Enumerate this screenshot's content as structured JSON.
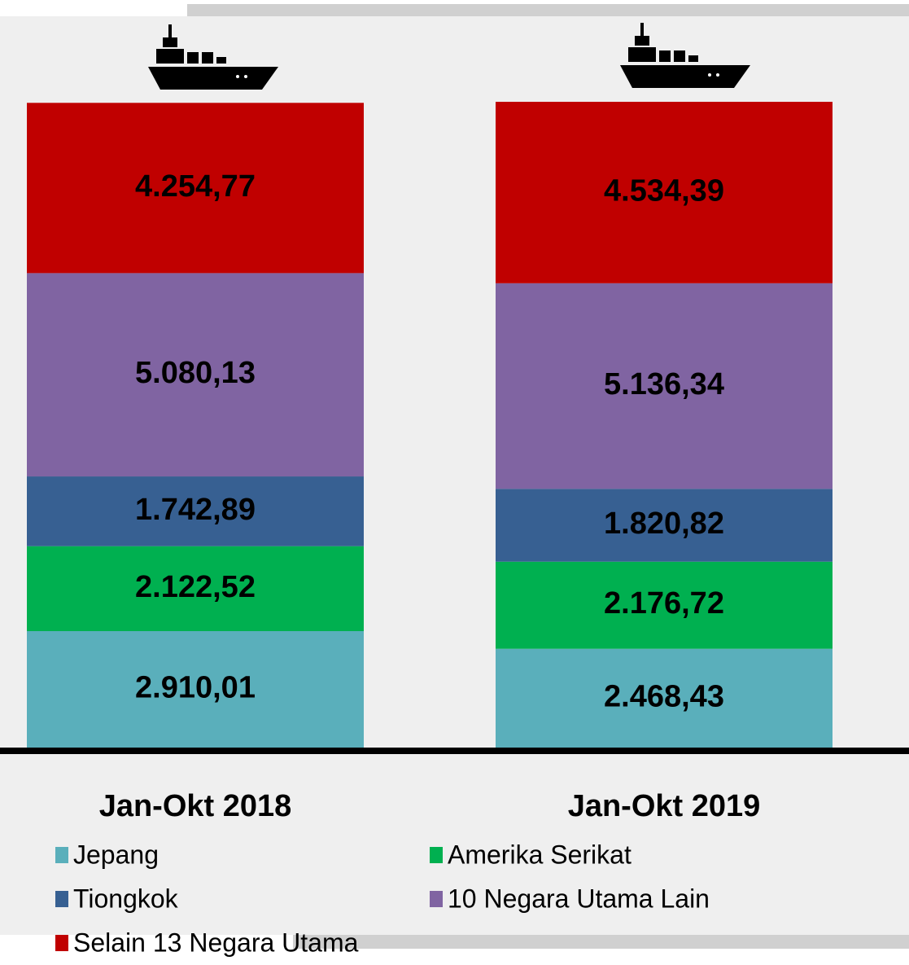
{
  "chart_data": {
    "type": "stacked-bar",
    "categories": [
      "Jan-Okt 2018",
      "Jan-Okt 2019"
    ],
    "series": [
      {
        "name": "Jepang",
        "color": "#5aafbb",
        "values": [
          2910.01,
          2468.43
        ],
        "value_labels": [
          "2.910,01",
          "2.468,43"
        ]
      },
      {
        "name": "Amerika Serikat",
        "color": "#00b050",
        "values": [
          2122.52,
          2176.72
        ],
        "value_labels": [
          "2.122,52",
          "2.176,72"
        ]
      },
      {
        "name": "Tiongkok",
        "color": "#376092",
        "values": [
          1742.89,
          1820.82
        ],
        "value_labels": [
          "1.742,89",
          "1.820,82"
        ]
      },
      {
        "name": "10 Negara Utama Lain",
        "color": "#8064a2",
        "values": [
          5080.13,
          5136.34
        ],
        "value_labels": [
          "5.080,13",
          "5.136,34"
        ]
      },
      {
        "name": "Selain 13 Negara Utama",
        "color": "#c00000",
        "values": [
          4254.77,
          4534.39
        ],
        "value_labels": [
          "4.254,77",
          "4.534,39"
        ]
      }
    ]
  }
}
